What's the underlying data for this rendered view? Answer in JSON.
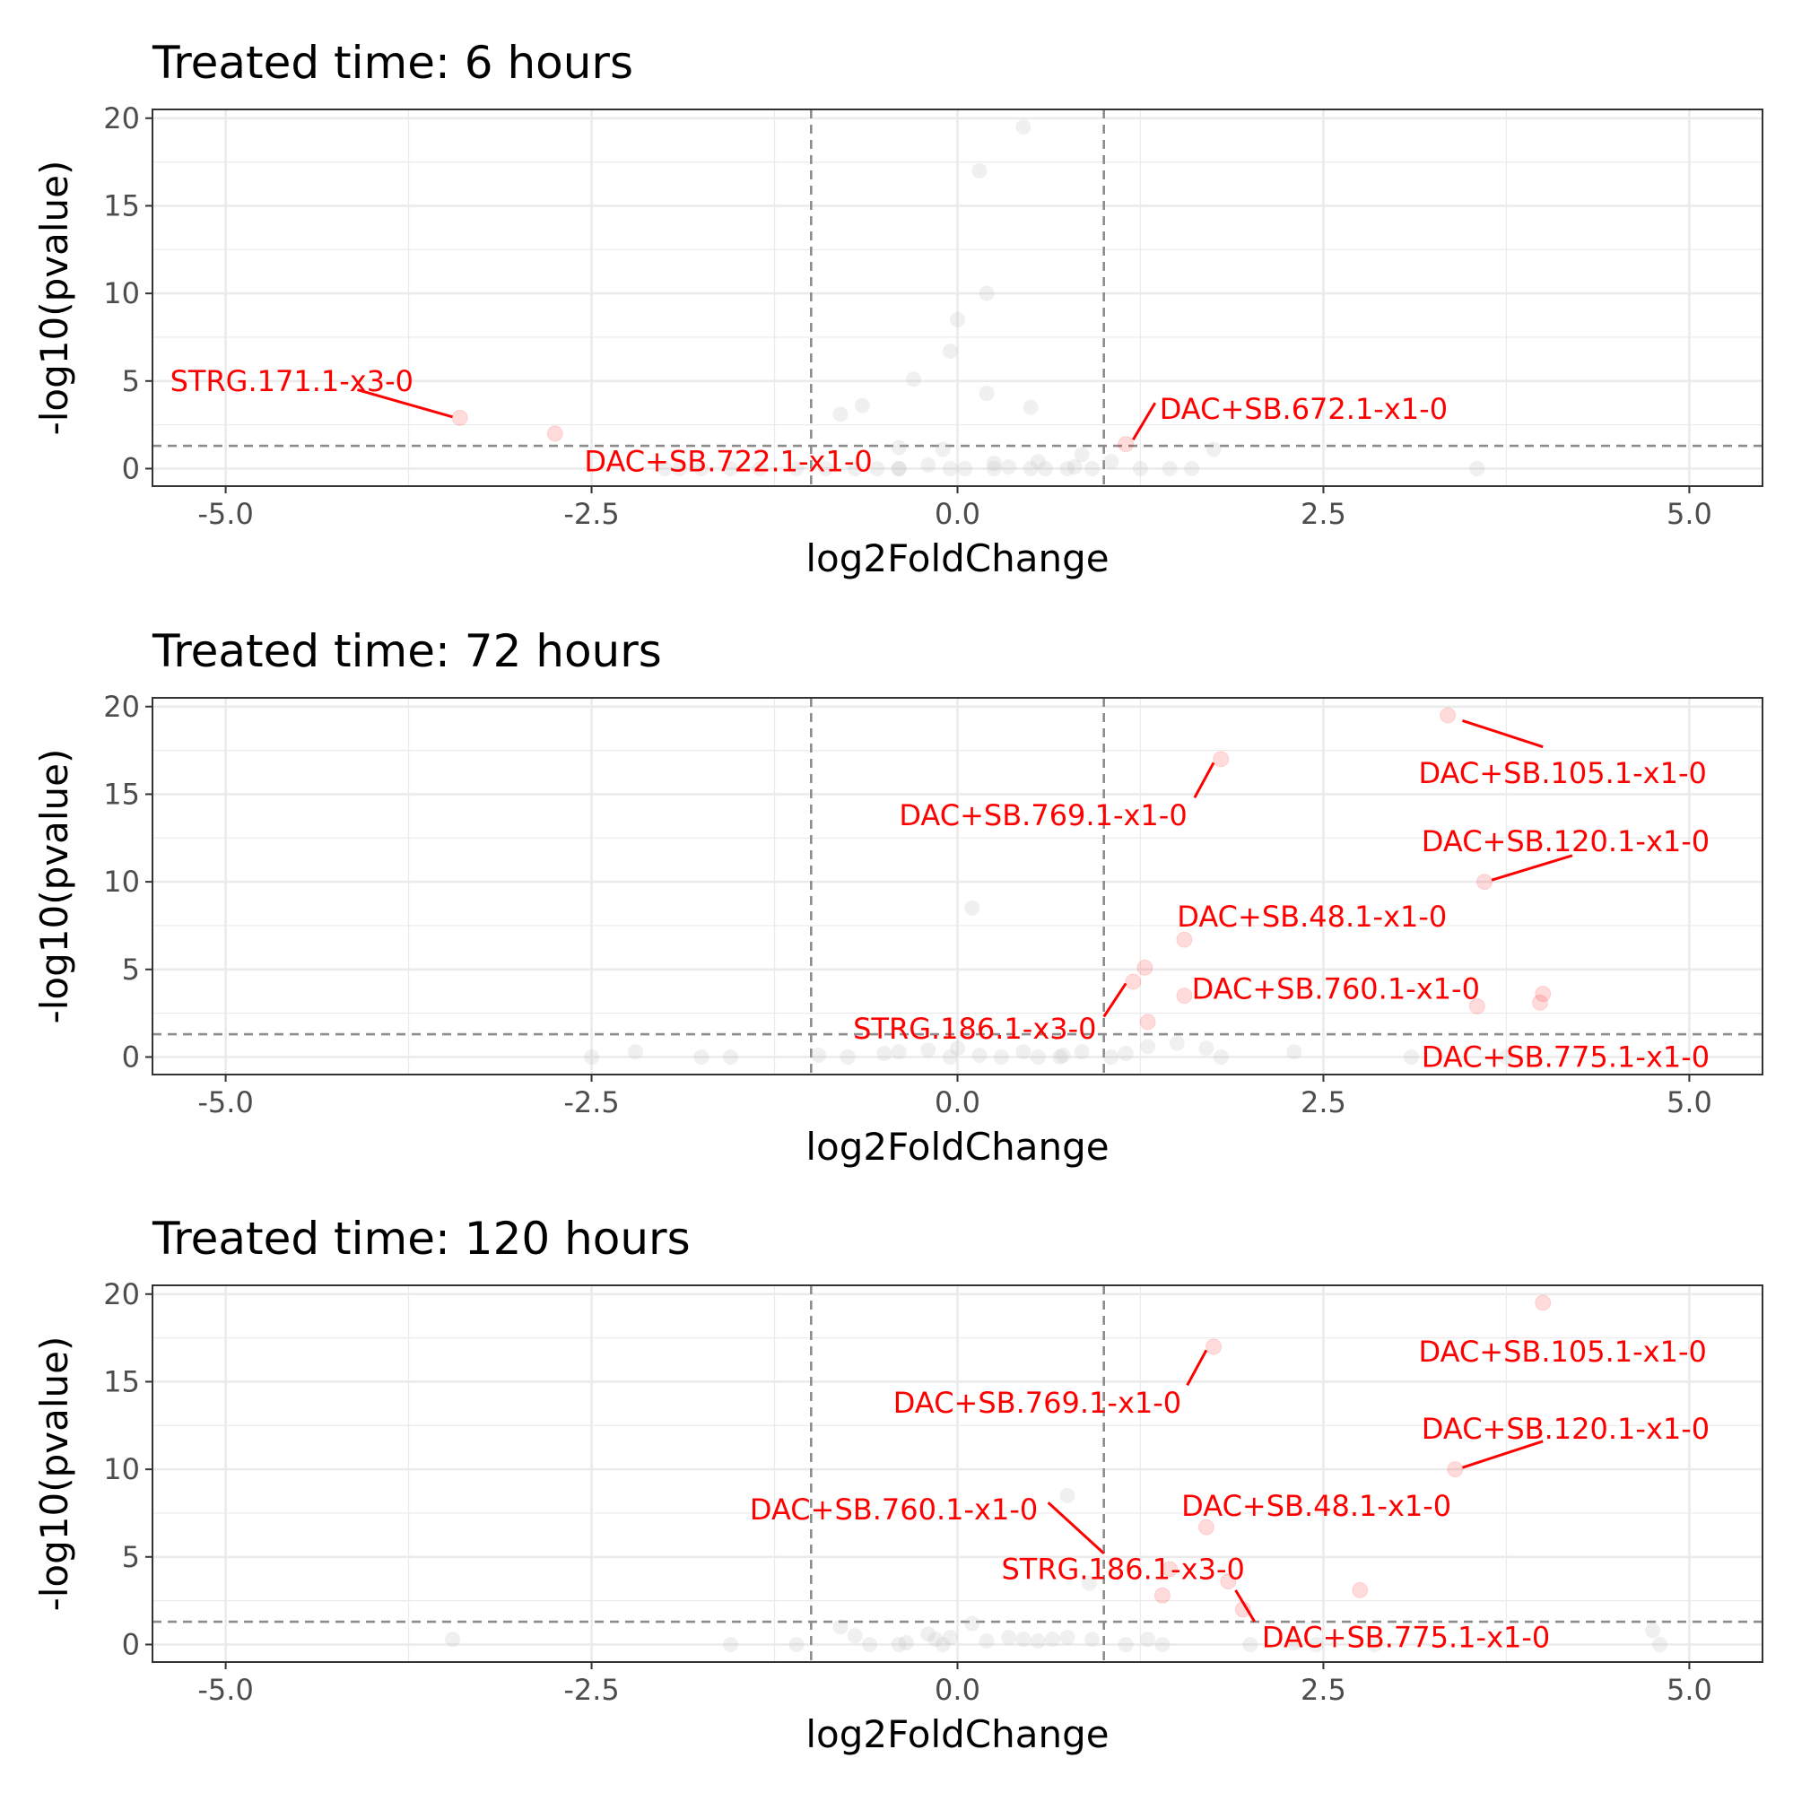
{
  "figure": {
    "x_tick_labels": [
      "-5.0",
      "-2.5",
      "0.0",
      "2.5",
      "5.0"
    ],
    "y_tick_labels": [
      "0",
      "5",
      "10",
      "15",
      "20"
    ]
  },
  "colors": {
    "significant": "#ff0000",
    "nonsignificant": "#bbbbbb",
    "threshold_line": "#8c8c8c",
    "grid": "#ebebeb",
    "panel_border": "#333333",
    "tick_label": "#4d4d4d"
  },
  "chart_data": [
    {
      "type": "scatter",
      "title": "Treated time: 6 hours",
      "xlabel": "log2FoldChange",
      "ylabel": "-log10(pvalue)",
      "xlim": [
        -5.5,
        5.5
      ],
      "ylim": [
        -1,
        20.5
      ],
      "xticks": [
        -5,
        -2.5,
        0,
        2.5,
        5
      ],
      "yticks": [
        0,
        5,
        10,
        15,
        20
      ],
      "grid": true,
      "thresholds": {
        "vlines": [
          -1,
          1
        ],
        "hline": 1.3
      },
      "nonsignificant_points": [
        [
          0.45,
          19.5
        ],
        [
          0.15,
          17
        ],
        [
          0.2,
          10
        ],
        [
          0.0,
          8.5
        ],
        [
          -0.05,
          6.7
        ],
        [
          -0.3,
          5.1
        ],
        [
          0.2,
          4.3
        ],
        [
          0.5,
          3.5
        ],
        [
          -0.65,
          3.6
        ],
        [
          -0.8,
          3.1
        ],
        [
          -0.4,
          1.2
        ],
        [
          -0.1,
          1.1
        ],
        [
          1.75,
          1.1
        ],
        [
          0.85,
          0.8
        ],
        [
          0.55,
          0.4
        ],
        [
          0.25,
          0.3
        ],
        [
          1.05,
          0.4
        ],
        [
          -2.0,
          0.0
        ],
        [
          -1.9,
          0.0
        ],
        [
          -1.75,
          0.0
        ],
        [
          -1.55,
          0.0
        ],
        [
          -1.35,
          0.0
        ],
        [
          -1.1,
          0.0
        ],
        [
          -0.9,
          0.0
        ],
        [
          -0.7,
          0.0
        ],
        [
          -0.55,
          0.0
        ],
        [
          -0.4,
          0.0
        ],
        [
          -0.4,
          0.0
        ],
        [
          -0.2,
          0.2
        ],
        [
          -0.05,
          0.0
        ],
        [
          0.05,
          0.0
        ],
        [
          0.25,
          0.0
        ],
        [
          0.35,
          0.1
        ],
        [
          0.5,
          0.0
        ],
        [
          0.6,
          0.0
        ],
        [
          0.75,
          0.0
        ],
        [
          0.8,
          0.1
        ],
        [
          0.92,
          0.0
        ],
        [
          1.25,
          0.0
        ],
        [
          1.45,
          0.0
        ],
        [
          1.6,
          0.0
        ],
        [
          3.55,
          0.0
        ]
      ],
      "significant_points": [
        [
          -3.4,
          2.9
        ],
        [
          -2.75,
          2.0
        ],
        [
          1.15,
          1.4
        ]
      ],
      "labels": [
        {
          "text": "STRG.171.1-x3-0",
          "x": -3.4,
          "y": 2.9,
          "tx": -5.38,
          "ty": 5.0,
          "anchor": "start",
          "line": [
            [
              -4.1,
              4.5
            ],
            [
              -3.45,
              2.95
            ]
          ]
        },
        {
          "text": "DAC+SB.722.1-x1-0",
          "x": -2.75,
          "y": 2.0,
          "tx": -2.55,
          "ty": 0.4,
          "anchor": "start",
          "line": null
        },
        {
          "text": "DAC+SB.672.1-x1-0",
          "x": 1.15,
          "y": 1.4,
          "tx": 1.38,
          "ty": 3.4,
          "anchor": "start",
          "line": [
            [
              1.35,
              3.75
            ],
            [
              1.2,
              1.65
            ]
          ]
        }
      ]
    },
    {
      "type": "scatter",
      "title": "Treated time: 72 hours",
      "xlabel": "log2FoldChange",
      "ylabel": "-log10(pvalue)",
      "xlim": [
        -5.5,
        5.5
      ],
      "ylim": [
        -1,
        20.5
      ],
      "xticks": [
        -5,
        -2.5,
        0,
        2.5,
        5
      ],
      "yticks": [
        0,
        5,
        10,
        15,
        20
      ],
      "grid": true,
      "thresholds": {
        "vlines": [
          -1,
          1
        ],
        "hline": 1.3
      },
      "nonsignificant_points": [
        [
          0.1,
          8.5
        ],
        [
          -2.5,
          0.0
        ],
        [
          -2.2,
          0.3
        ],
        [
          -1.75,
          0.0
        ],
        [
          -1.55,
          0.0
        ],
        [
          -0.95,
          0.1
        ],
        [
          -0.75,
          0.0
        ],
        [
          -0.5,
          0.2
        ],
        [
          -0.4,
          0.3
        ],
        [
          -0.2,
          0.4
        ],
        [
          -0.05,
          0.0
        ],
        [
          0.0,
          0.5
        ],
        [
          0.15,
          0.1
        ],
        [
          0.3,
          0.0
        ],
        [
          0.45,
          0.3
        ],
        [
          0.55,
          0.0
        ],
        [
          0.7,
          0.0
        ],
        [
          0.72,
          0.1
        ],
        [
          0.85,
          0.3
        ],
        [
          1.05,
          0.0
        ],
        [
          1.15,
          0.2
        ],
        [
          1.3,
          0.6
        ],
        [
          1.5,
          0.8
        ],
        [
          1.7,
          0.5
        ],
        [
          1.8,
          0.0
        ],
        [
          2.3,
          0.3
        ],
        [
          3.1,
          0.0
        ],
        [
          3.75,
          0.0
        ]
      ],
      "significant_points": [
        [
          3.35,
          19.5
        ],
        [
          1.8,
          17.0
        ],
        [
          3.6,
          10.0
        ],
        [
          1.55,
          6.7
        ],
        [
          1.28,
          5.1
        ],
        [
          1.2,
          4.3
        ],
        [
          1.55,
          3.5
        ],
        [
          4.0,
          3.6
        ],
        [
          3.55,
          2.9
        ],
        [
          3.98,
          3.1
        ],
        [
          1.3,
          2.0
        ]
      ],
      "labels": [
        {
          "text": "DAC+SB.105.1-x1-0",
          "x": 3.35,
          "y": 19.5,
          "tx": 3.15,
          "ty": 16.2,
          "anchor": "start",
          "line": [
            [
              3.45,
              19.2
            ],
            [
              4.0,
              17.7
            ]
          ]
        },
        {
          "text": "DAC+SB.769.1-x1-0",
          "x": 1.8,
          "y": 17.0,
          "tx": 1.57,
          "ty": 13.8,
          "anchor": "end",
          "line": [
            [
              1.62,
              14.8
            ],
            [
              1.75,
              16.8
            ]
          ]
        },
        {
          "text": "DAC+SB.120.1-x1-0",
          "x": 3.6,
          "y": 10.0,
          "tx": 3.17,
          "ty": 12.3,
          "anchor": "start",
          "line": [
            [
              4.2,
              11.5
            ],
            [
              3.65,
              10.1
            ]
          ]
        },
        {
          "text": "DAC+SB.48.1-x1-0",
          "x": 1.55,
          "y": 6.7,
          "tx": 1.5,
          "ty": 8.0,
          "anchor": "start",
          "line": null
        },
        {
          "text": "DAC+SB.760.1-x1-0",
          "x": 1.55,
          "y": 3.5,
          "tx": 1.6,
          "ty": 3.9,
          "anchor": "start",
          "line": null
        },
        {
          "text": "STRG.186.1-x3-0",
          "x": 1.2,
          "y": 4.3,
          "tx": 0.95,
          "ty": 1.6,
          "anchor": "end",
          "line": [
            [
              1.0,
              2.3
            ],
            [
              1.15,
              4.2
            ]
          ]
        },
        {
          "text": "DAC+SB.775.1-x1-0",
          "x": 3.55,
          "y": 2.9,
          "tx": 3.17,
          "ty": 0.0,
          "anchor": "start",
          "line": null
        }
      ]
    },
    {
      "type": "scatter",
      "title": "Treated time: 120 hours",
      "xlabel": "log2FoldChange",
      "ylabel": "-log10(pvalue)",
      "xlim": [
        -5.5,
        5.5
      ],
      "ylim": [
        -1,
        20.5
      ],
      "xticks": [
        -5,
        -2.5,
        0,
        2.5,
        5
      ],
      "yticks": [
        0,
        5,
        10,
        15,
        20
      ],
      "grid": true,
      "thresholds": {
        "vlines": [
          -1,
          1
        ],
        "hline": 1.3
      },
      "nonsignificant_points": [
        [
          0.75,
          8.5
        ],
        [
          0.9,
          3.5
        ],
        [
          -3.45,
          0.3
        ],
        [
          -1.55,
          0.0
        ],
        [
          -1.1,
          0.0
        ],
        [
          -0.8,
          1.0
        ],
        [
          -0.7,
          0.5
        ],
        [
          -0.6,
          0.0
        ],
        [
          -0.4,
          0.0
        ],
        [
          -0.35,
          0.1
        ],
        [
          -0.2,
          0.6
        ],
        [
          -0.15,
          0.3
        ],
        [
          -0.1,
          0.0
        ],
        [
          -0.05,
          0.4
        ],
        [
          0.1,
          1.2
        ],
        [
          0.2,
          0.2
        ],
        [
          0.35,
          0.4
        ],
        [
          0.45,
          0.3
        ],
        [
          0.55,
          0.2
        ],
        [
          0.65,
          0.3
        ],
        [
          0.75,
          0.4
        ],
        [
          0.92,
          0.3
        ],
        [
          1.15,
          0.0
        ],
        [
          1.3,
          0.3
        ],
        [
          1.4,
          0.0
        ],
        [
          2.0,
          0.0
        ],
        [
          2.3,
          0.1
        ],
        [
          2.45,
          0.0
        ],
        [
          2.85,
          0.0
        ],
        [
          4.75,
          0.8
        ],
        [
          4.8,
          0.0
        ]
      ],
      "significant_points": [
        [
          4.0,
          19.5
        ],
        [
          1.75,
          17.0
        ],
        [
          3.4,
          10.0
        ],
        [
          1.7,
          6.7
        ],
        [
          1.45,
          4.3
        ],
        [
          1.85,
          3.6
        ],
        [
          2.75,
          3.1
        ],
        [
          1.4,
          2.8
        ],
        [
          1.95,
          2.0
        ]
      ],
      "labels": [
        {
          "text": "DAC+SB.105.1-x1-0",
          "x": 4.0,
          "y": 19.5,
          "tx": 3.15,
          "ty": 16.7,
          "anchor": "start",
          "line": null
        },
        {
          "text": "DAC+SB.769.1-x1-0",
          "x": 1.75,
          "y": 17.0,
          "tx": 1.53,
          "ty": 13.8,
          "anchor": "end",
          "line": [
            [
              1.57,
              14.8
            ],
            [
              1.7,
              16.8
            ]
          ]
        },
        {
          "text": "DAC+SB.120.1-x1-0",
          "x": 3.4,
          "y": 10.0,
          "tx": 3.17,
          "ty": 12.3,
          "anchor": "start",
          "line": [
            [
              4.0,
              11.6
            ],
            [
              3.45,
              10.1
            ]
          ]
        },
        {
          "text": "DAC+SB.48.1-x1-0",
          "x": 1.7,
          "y": 6.7,
          "tx": 1.53,
          "ty": 7.9,
          "anchor": "start",
          "line": null
        },
        {
          "text": "DAC+SB.760.1-x1-0",
          "x": 1.0,
          "y": 5.0,
          "tx": 0.55,
          "ty": 7.7,
          "anchor": "end",
          "line": [
            [
              0.62,
              8.1
            ],
            [
              1.0,
              5.2
            ]
          ]
        },
        {
          "text": "STRG.186.1-x3-0",
          "x": 1.45,
          "y": 4.3,
          "tx": 0.3,
          "ty": 4.3,
          "anchor": "start",
          "line": null
        },
        {
          "text": "DAC+SB.775.1-x1-0",
          "x": 1.95,
          "y": 2.0,
          "tx": 2.08,
          "ty": 0.4,
          "anchor": "start",
          "line": [
            [
              2.03,
              1.3
            ],
            [
              1.9,
              3.1
            ]
          ]
        }
      ]
    }
  ]
}
